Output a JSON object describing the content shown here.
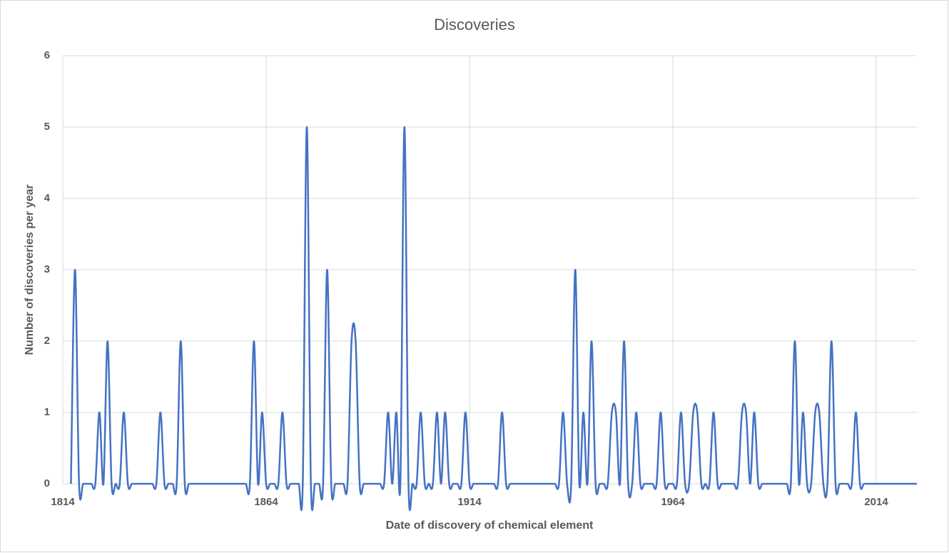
{
  "chart_data": {
    "type": "line",
    "title": "Discoveries",
    "x_label": "Date of discovery of chemical element",
    "y_label": "Number of discoveries per year",
    "x": [
      1816,
      1817,
      1818,
      1819,
      1820,
      1821,
      1822,
      1823,
      1824,
      1825,
      1826,
      1827,
      1828,
      1829,
      1830,
      1831,
      1832,
      1833,
      1834,
      1835,
      1836,
      1837,
      1838,
      1839,
      1840,
      1841,
      1842,
      1843,
      1844,
      1845,
      1846,
      1847,
      1848,
      1849,
      1850,
      1851,
      1852,
      1853,
      1854,
      1855,
      1856,
      1857,
      1858,
      1859,
      1860,
      1861,
      1862,
      1863,
      1864,
      1865,
      1866,
      1867,
      1868,
      1869,
      1870,
      1871,
      1872,
      1873,
      1874,
      1875,
      1876,
      1877,
      1878,
      1879,
      1880,
      1881,
      1882,
      1883,
      1884,
      1885,
      1886,
      1887,
      1888,
      1889,
      1890,
      1891,
      1892,
      1893,
      1894,
      1895,
      1896,
      1897,
      1898,
      1899,
      1900,
      1901,
      1902,
      1903,
      1904,
      1905,
      1906,
      1907,
      1908,
      1909,
      1910,
      1911,
      1912,
      1913,
      1914,
      1915,
      1916,
      1917,
      1918,
      1919,
      1920,
      1921,
      1922,
      1923,
      1924,
      1925,
      1926,
      1927,
      1928,
      1929,
      1930,
      1931,
      1932,
      1933,
      1934,
      1935,
      1936,
      1937,
      1938,
      1939,
      1940,
      1941,
      1942,
      1943,
      1944,
      1945,
      1946,
      1947,
      1948,
      1949,
      1950,
      1951,
      1952,
      1953,
      1954,
      1955,
      1956,
      1957,
      1958,
      1959,
      1960,
      1961,
      1962,
      1963,
      1964,
      1965,
      1966,
      1967,
      1968,
      1969,
      1970,
      1971,
      1972,
      1973,
      1974,
      1975,
      1976,
      1977,
      1978,
      1979,
      1980,
      1981,
      1982,
      1983,
      1984,
      1985,
      1986,
      1987,
      1988,
      1989,
      1990,
      1991,
      1992,
      1993,
      1994,
      1995,
      1996,
      1997,
      1998,
      1999,
      2000,
      2001,
      2002,
      2003,
      2004,
      2005,
      2006,
      2007,
      2008,
      2009,
      2010,
      2011,
      2012,
      2013,
      2014,
      2015,
      2016,
      2017,
      2018,
      2019,
      2020,
      2021,
      2022,
      2023,
      2024
    ],
    "series": [
      {
        "name": "Discoveries",
        "color": "#4472c4",
        "values": [
          0,
          3,
          0,
          0,
          0,
          0,
          0,
          1,
          0,
          2,
          0,
          0,
          0,
          1,
          0,
          0,
          0,
          0,
          0,
          0,
          0,
          0,
          1,
          0,
          0,
          0,
          0,
          2,
          0,
          0,
          0,
          0,
          0,
          0,
          0,
          0,
          0,
          0,
          0,
          0,
          0,
          0,
          0,
          0,
          0,
          2,
          0,
          1,
          0,
          0,
          0,
          0,
          1,
          0,
          0,
          0,
          0,
          0,
          5,
          0,
          0,
          0,
          0,
          3,
          0,
          0,
          0,
          0,
          0,
          2,
          2,
          0,
          0,
          0,
          0,
          0,
          0,
          0,
          1,
          0,
          1,
          0,
          5,
          0,
          0,
          0,
          1,
          0,
          0,
          0,
          1,
          0,
          1,
          0,
          0,
          0,
          0,
          1,
          0,
          0,
          0,
          0,
          0,
          0,
          0,
          0,
          1,
          0,
          0,
          0,
          0,
          0,
          0,
          0,
          0,
          0,
          0,
          0,
          0,
          0,
          0,
          1,
          0,
          0,
          3,
          0,
          1,
          0,
          2,
          0,
          0,
          0,
          0,
          1,
          1,
          0,
          2,
          0,
          0,
          1,
          0,
          0,
          0,
          0,
          0,
          1,
          0,
          0,
          0,
          0,
          1,
          0,
          0,
          1,
          1,
          0,
          0,
          0,
          1,
          0,
          0,
          0,
          0,
          0,
          0,
          1,
          1,
          0,
          1,
          0,
          0,
          0,
          0,
          0,
          0,
          0,
          0,
          0,
          2,
          0,
          1,
          0,
          0,
          1,
          1,
          0,
          0,
          2,
          0,
          0,
          0,
          0,
          0,
          1,
          0,
          0,
          0,
          0,
          0,
          0,
          0,
          0,
          0,
          0,
          0,
          0,
          0,
          0,
          0
        ]
      }
    ],
    "xlim": [
      1814,
      2024
    ],
    "xticks": [
      1814,
      1864,
      1914,
      1964,
      2014
    ],
    "ylim": [
      0,
      6
    ],
    "yticks": [
      0,
      1,
      2,
      3,
      4,
      5,
      6
    ],
    "grid": true,
    "smooth": true
  }
}
